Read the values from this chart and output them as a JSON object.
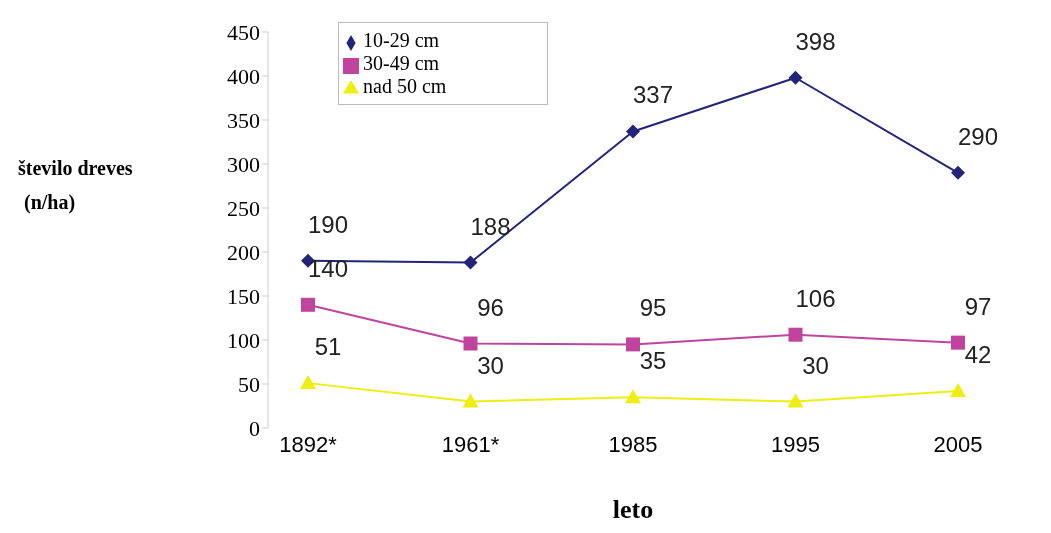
{
  "chart_data": {
    "type": "line",
    "xlabel": "leto",
    "ylabel": "število dreves (n/ha)",
    "categories": [
      "1892*",
      "1961*",
      "1985",
      "1995",
      "2005"
    ],
    "series": [
      {
        "name": "10-29 cm",
        "color": "#23237a",
        "marker": "diamond",
        "values": [
          190,
          188,
          337,
          398,
          290
        ]
      },
      {
        "name": "30-49 cm",
        "color": "#c0449e",
        "marker": "square",
        "values": [
          140,
          96,
          95,
          106,
          97
        ]
      },
      {
        "name": "nad 50 cm",
        "color": "#eeee10",
        "marker": "triangle",
        "values": [
          51,
          30,
          35,
          30,
          42
        ]
      }
    ],
    "ylim": [
      0,
      450
    ],
    "yticks": [
      0,
      50,
      100,
      150,
      200,
      250,
      300,
      350,
      400,
      450
    ],
    "grid": false,
    "legend": "top left",
    "data_labels": true
  }
}
